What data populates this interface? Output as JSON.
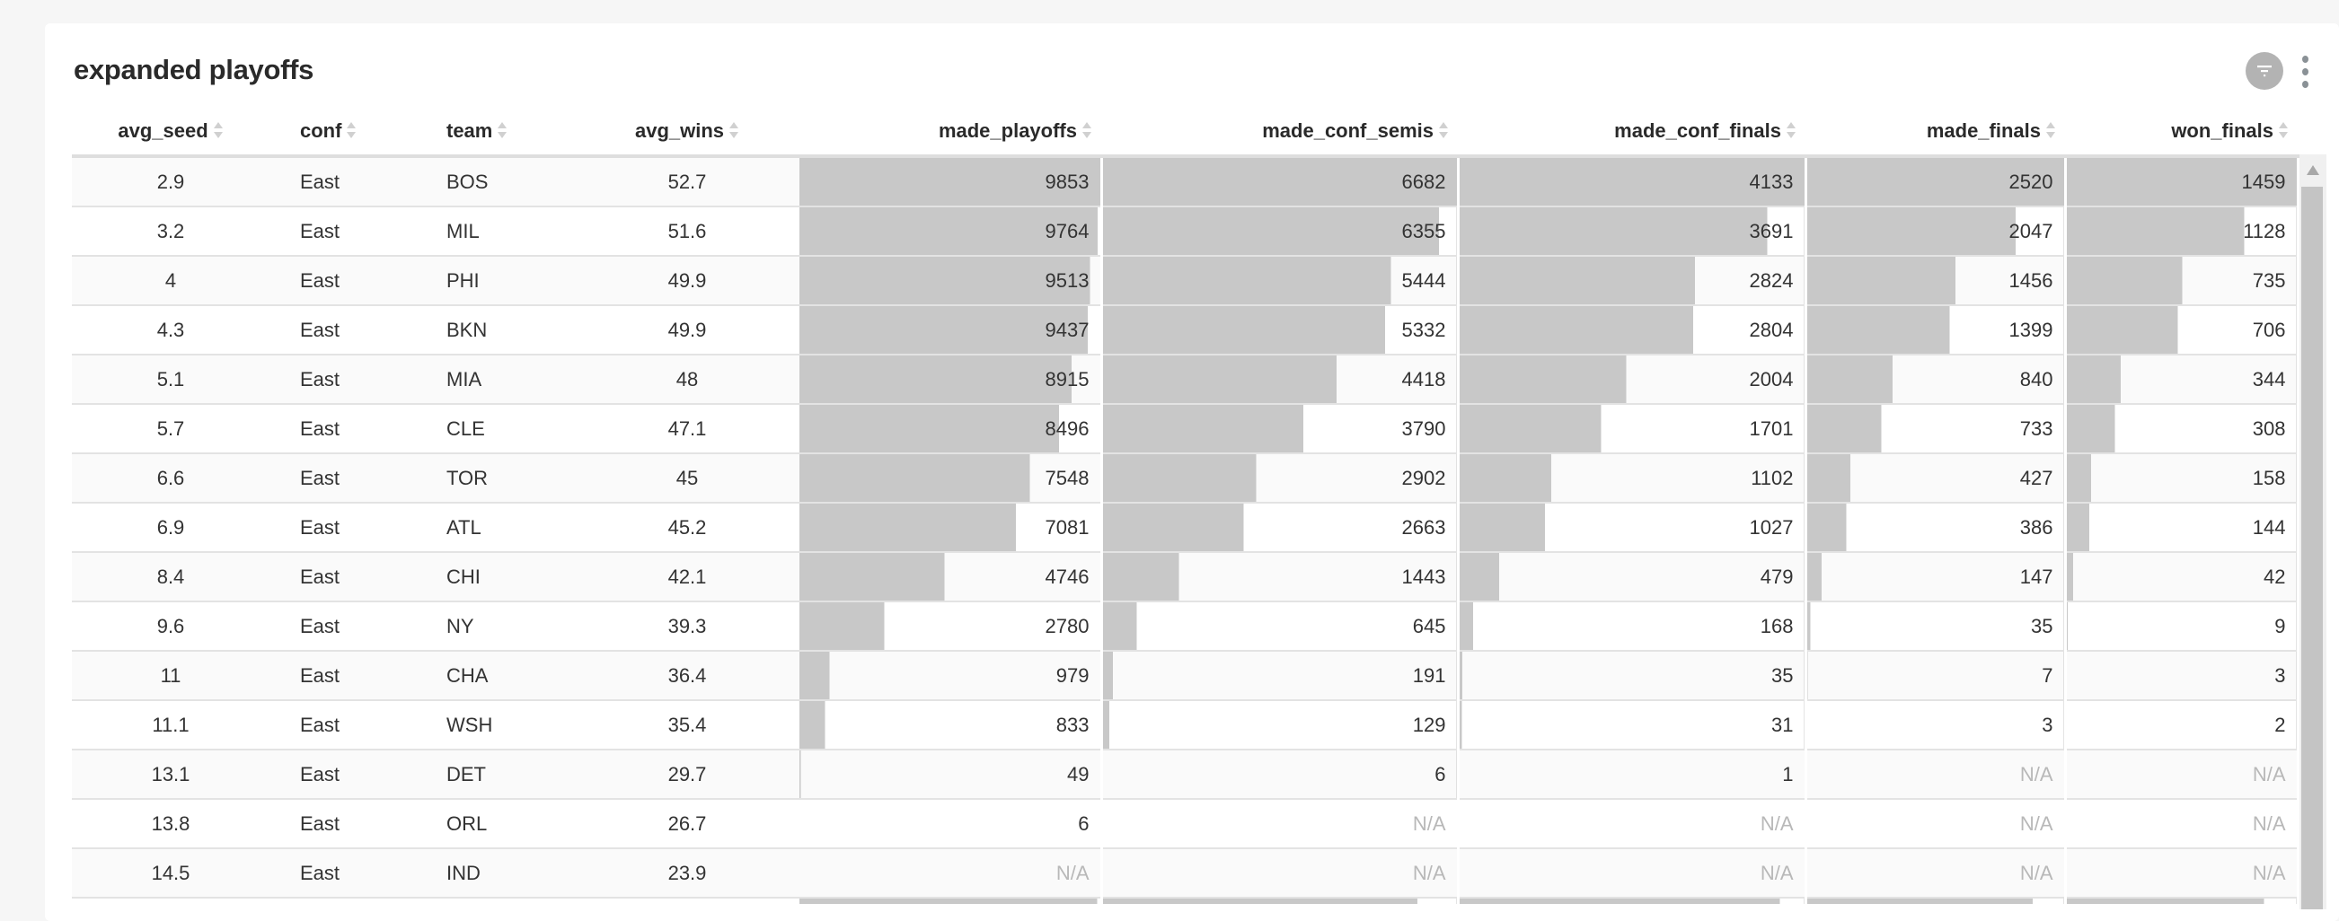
{
  "widget": {
    "title": "expanded playoffs",
    "filter_icon": "filter-icon",
    "menu_icon": "more-vertical-icon"
  },
  "colors": {
    "bar": "#c8c8c8",
    "na_text": "#b8b8b8"
  },
  "columns": [
    "avg_seed",
    "conf",
    "team",
    "avg_wins",
    "made_playoffs",
    "made_conf_semis",
    "made_conf_finals",
    "made_finals",
    "won_finals"
  ],
  "rows": [
    [
      "2.9",
      "East",
      "BOS",
      "52.7",
      "9853",
      "6682",
      "4133",
      "2520",
      "1459"
    ],
    [
      "3.2",
      "East",
      "MIL",
      "51.6",
      "9764",
      "6355",
      "3691",
      "2047",
      "1128"
    ],
    [
      "4",
      "East",
      "PHI",
      "49.9",
      "9513",
      "5444",
      "2824",
      "1456",
      "735"
    ],
    [
      "4.3",
      "East",
      "BKN",
      "49.9",
      "9437",
      "5332",
      "2804",
      "1399",
      "706"
    ],
    [
      "5.1",
      "East",
      "MIA",
      "48",
      "8915",
      "4418",
      "2004",
      "840",
      "344"
    ],
    [
      "5.7",
      "East",
      "CLE",
      "47.1",
      "8496",
      "3790",
      "1701",
      "733",
      "308"
    ],
    [
      "6.6",
      "East",
      "TOR",
      "45",
      "7548",
      "2902",
      "1102",
      "427",
      "158"
    ],
    [
      "6.9",
      "East",
      "ATL",
      "45.2",
      "7081",
      "2663",
      "1027",
      "386",
      "144"
    ],
    [
      "8.4",
      "East",
      "CHI",
      "42.1",
      "4746",
      "1443",
      "479",
      "147",
      "42"
    ],
    [
      "9.6",
      "East",
      "NY",
      "39.3",
      "2780",
      "645",
      "168",
      "35",
      "9"
    ],
    [
      "11",
      "East",
      "CHA",
      "36.4",
      "979",
      "191",
      "35",
      "7",
      "3"
    ],
    [
      "11.1",
      "East",
      "WSH",
      "35.4",
      "833",
      "129",
      "31",
      "3",
      "2"
    ],
    [
      "13.1",
      "East",
      "DET",
      "29.7",
      "49",
      "6",
      "1",
      "N/A",
      "N/A"
    ],
    [
      "13.8",
      "East",
      "ORL",
      "26.7",
      "6",
      "N/A",
      "N/A",
      "N/A",
      "N/A"
    ],
    [
      "14.5",
      "East",
      "IND",
      "23.9",
      "N/A",
      "N/A",
      "N/A",
      "N/A",
      "N/A"
    ]
  ],
  "partial_row_bar_fractions": [
    0.99,
    0.89,
    0.93,
    0.88,
    0.86
  ]
}
